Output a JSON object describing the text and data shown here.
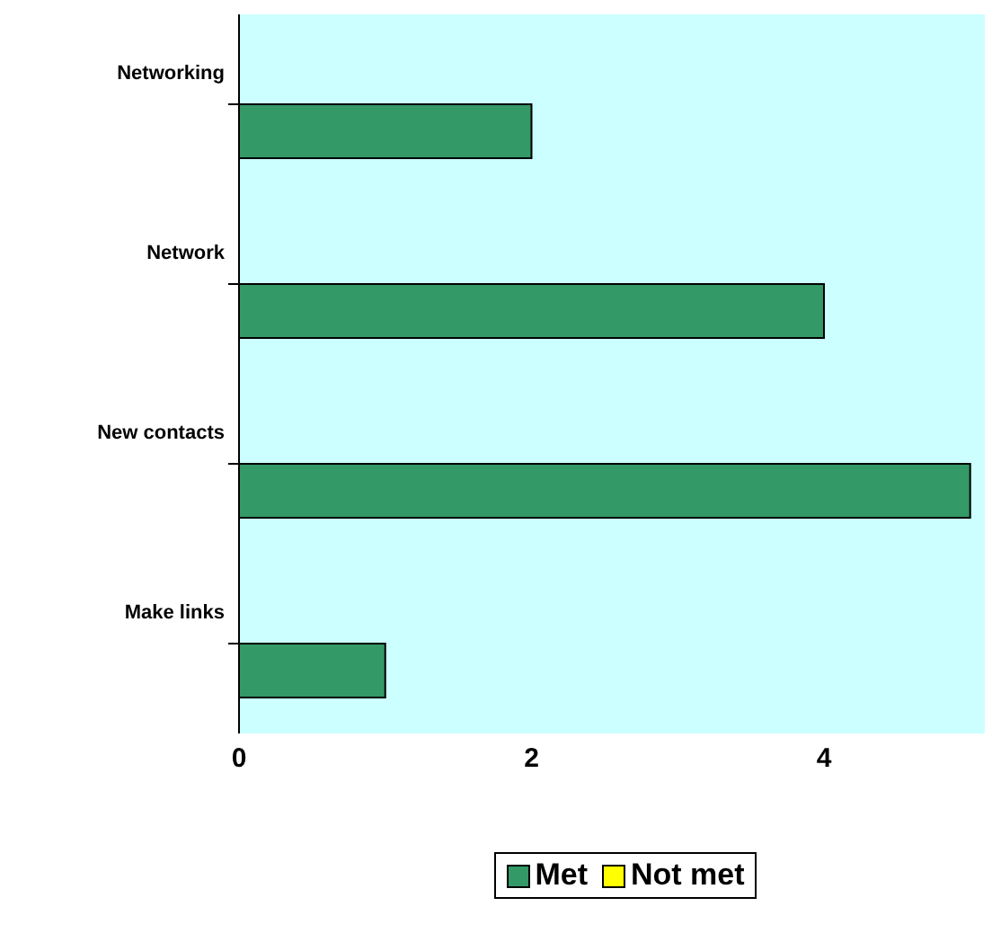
{
  "chart_data": {
    "type": "bar",
    "orientation": "horizontal",
    "categories": [
      "Networking",
      "Network",
      "New contacts",
      "Make links"
    ],
    "series": [
      {
        "name": "Met",
        "color": "#339966",
        "values": [
          2,
          4,
          5,
          1
        ]
      },
      {
        "name": "Not met",
        "color": "#ffff00",
        "values": [
          0,
          0,
          0,
          0
        ]
      }
    ],
    "xlim": [
      0,
      5.1
    ],
    "xticks": [
      0,
      2,
      4
    ],
    "legend": "bottom"
  }
}
